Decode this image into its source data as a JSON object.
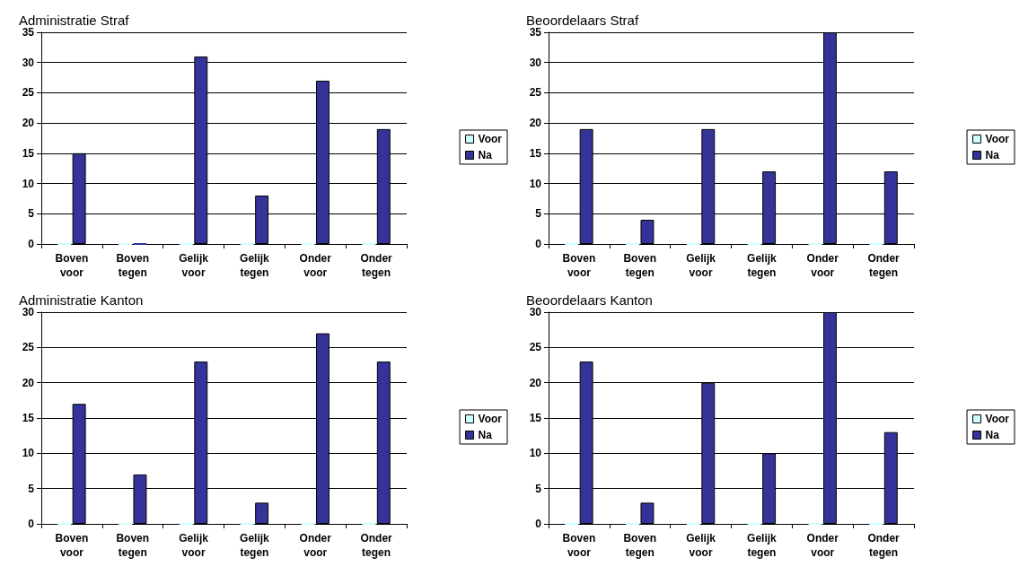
{
  "chart_data": [
    {
      "type": "bar",
      "title": "Administratie Straf",
      "categories": [
        "Boven voor",
        "Boven tegen",
        "Gelijk voor",
        "Gelijk tegen",
        "Onder voor",
        "Onder tegen"
      ],
      "series": [
        {
          "name": "Voor",
          "color": "#ccffff",
          "values": [
            0,
            0,
            0,
            0,
            0,
            0
          ]
        },
        {
          "name": "Na",
          "color": "#333399",
          "values": [
            15,
            0,
            31,
            8,
            27,
            19
          ]
        }
      ],
      "ylim": [
        0,
        35
      ],
      "yticks": [
        0,
        5,
        10,
        15,
        20,
        25,
        30,
        35
      ],
      "grid": "y",
      "legend": "right"
    },
    {
      "type": "bar",
      "title": "Beoordelaars Straf",
      "categories": [
        "Boven voor",
        "Boven tegen",
        "Gelijk voor",
        "Gelijk tegen",
        "Onder voor",
        "Onder tegen"
      ],
      "series": [
        {
          "name": "Voor",
          "color": "#ccffff",
          "values": [
            0,
            0,
            0,
            0,
            0,
            0
          ]
        },
        {
          "name": "Na",
          "color": "#333399",
          "values": [
            19,
            4,
            19,
            12,
            35,
            12
          ]
        }
      ],
      "ylim": [
        0,
        35
      ],
      "yticks": [
        0,
        5,
        10,
        15,
        20,
        25,
        30,
        35
      ],
      "grid": "y",
      "legend": "right"
    },
    {
      "type": "bar",
      "title": "Administratie Kanton",
      "categories": [
        "Boven voor",
        "Boven tegen",
        "Gelijk voor",
        "Gelijk tegen",
        "Onder voor",
        "Onder tegen"
      ],
      "series": [
        {
          "name": "Voor",
          "color": "#ccffff",
          "values": [
            0,
            0,
            0,
            0,
            0,
            0
          ]
        },
        {
          "name": "Na",
          "color": "#333399",
          "values": [
            17,
            7,
            23,
            3,
            27,
            23
          ]
        }
      ],
      "ylim": [
        0,
        30
      ],
      "yticks": [
        0,
        5,
        10,
        15,
        20,
        25,
        30
      ],
      "grid": "y",
      "legend": "right"
    },
    {
      "type": "bar",
      "title": "Beoordelaars Kanton",
      "categories": [
        "Boven voor",
        "Boven tegen",
        "Gelijk voor",
        "Gelijk tegen",
        "Onder voor",
        "Onder tegen"
      ],
      "series": [
        {
          "name": "Voor",
          "color": "#ccffff",
          "values": [
            0,
            0,
            0,
            0,
            0,
            0
          ]
        },
        {
          "name": "Na",
          "color": "#333399",
          "values": [
            23,
            3,
            20,
            10,
            30,
            13
          ]
        }
      ],
      "ylim": [
        0,
        30
      ],
      "yticks": [
        0,
        5,
        10,
        15,
        20,
        25,
        30
      ],
      "grid": "y",
      "legend": "right"
    }
  ]
}
